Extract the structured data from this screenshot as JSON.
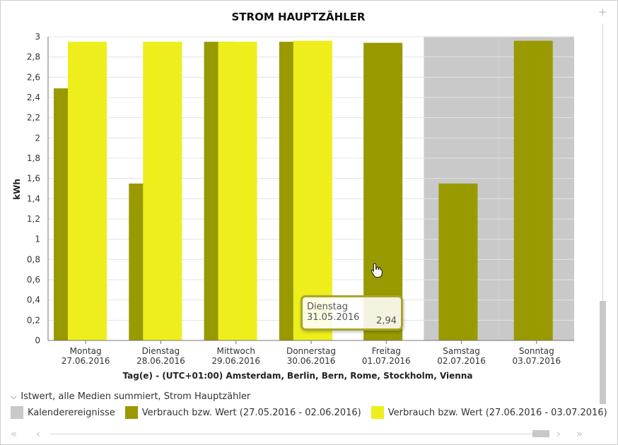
{
  "header": {
    "title": "STROM HAUPTZÄHLER"
  },
  "chart_data": {
    "type": "bar",
    "categories": [
      {
        "day": "Montag",
        "date": "27.06.2016"
      },
      {
        "day": "Dienstag",
        "date": "28.06.2016"
      },
      {
        "day": "Mittwoch",
        "date": "29.06.2016"
      },
      {
        "day": "Donnerstag",
        "date": "30.06.2016"
      },
      {
        "day": "Freitag",
        "date": "01.07.2016"
      },
      {
        "day": "Samstag",
        "date": "02.07.2016"
      },
      {
        "day": "Sonntag",
        "date": "03.07.2016"
      }
    ],
    "series": [
      {
        "name": "Verbrauch bzw. Wert (27.05.2016 - 02.06.2016)",
        "color": "#999900",
        "values": [
          2.49,
          1.55,
          2.95,
          2.95,
          2.94,
          1.55,
          2.96
        ]
      },
      {
        "name": "Verbrauch bzw. Wert (27.06.2016 - 03.07.2016)",
        "color": "#eeee1c",
        "values": [
          2.95,
          2.95,
          2.95,
          2.96,
          null,
          null,
          null
        ]
      }
    ],
    "calendar_events": {
      "name": "Kalenderereignisse",
      "color": "#c9c9c9",
      "categories": [
        "Samstag",
        "Sonntag"
      ]
    },
    "ylabel": "kWh",
    "xlabel": "Tag(e) - (UTC+01:00) Amsterdam, Berlin, Bern, Rome, Stockholm, Vienna",
    "ylim": [
      0,
      3
    ],
    "yticks": [
      "0",
      "0,2",
      "0,4",
      "0,6",
      "0,8",
      "1",
      "1,2",
      "1,4",
      "1,6",
      "1,8",
      "2",
      "2,2",
      "2,4",
      "2,6",
      "2,8",
      "3"
    ],
    "grid": true
  },
  "legend": {
    "group_label": "Istwert, alle Medien summiert, Strom Hauptzähler",
    "items": [
      {
        "label": "Kalenderereignisse",
        "color": "#c9c9c9"
      },
      {
        "label": "Verbrauch bzw. Wert (27.05.2016 - 02.06.2016)",
        "color": "#999900"
      },
      {
        "label": "Verbrauch bzw. Wert (27.06.2016 - 03.07.2016)",
        "color": "#eeee1c"
      }
    ]
  },
  "tooltip": {
    "label": "Dienstag 31.05.2016",
    "value": "2,94"
  },
  "controls": {
    "zoom_in": "+",
    "zoom_out": "-",
    "first": "«",
    "prev": "‹",
    "next": "›",
    "last": "»"
  }
}
